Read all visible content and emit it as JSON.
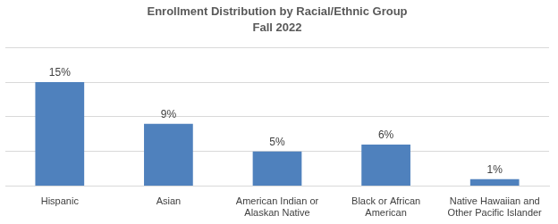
{
  "chart_data": {
    "type": "bar",
    "title": "Enrollment Distribution by Racial/Ethnic Group",
    "subtitle": "Fall 2022",
    "categories": [
      "Hispanic",
      "Asian",
      "American Indian or Alaskan Native",
      "Black or African American",
      "Native Hawaiian and Other Pacific Islander"
    ],
    "values": [
      15,
      9,
      5,
      6,
      1
    ],
    "value_labels": [
      "15%",
      "9%",
      "5%",
      "6%",
      "1%"
    ],
    "color": "#4f81bd",
    "ylim": [
      0,
      20
    ],
    "yticks": [
      0,
      5,
      10,
      15,
      20
    ],
    "grid": true,
    "data_labels": true,
    "tick_labels": "x"
  }
}
